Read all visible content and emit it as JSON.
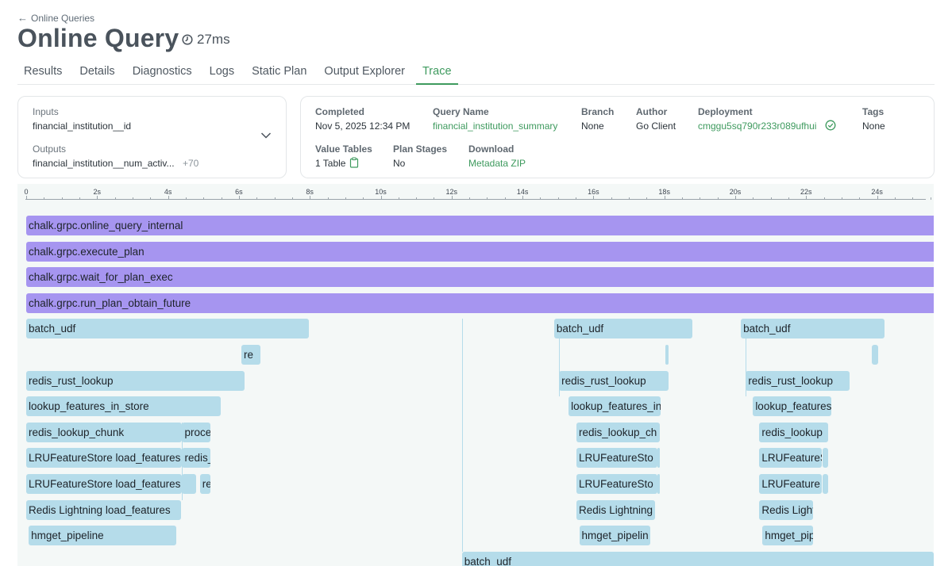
{
  "breadcrumb": "Online Queries",
  "header": {
    "title": "Online Query",
    "duration": "27ms"
  },
  "tabs": [
    "Results",
    "Details",
    "Diagnostics",
    "Logs",
    "Static Plan",
    "Output Explorer",
    "Trace"
  ],
  "active_tab": "Trace",
  "io_card": {
    "inputs_label": "Inputs",
    "inputs_value": "financial_institution__id",
    "outputs_label": "Outputs",
    "outputs_value": "financial_institution__num_activ...",
    "outputs_more": "+70"
  },
  "meta_card": {
    "completed_label": "Completed",
    "completed_value": "Nov 5, 2025 12:34 PM",
    "query_name_label": "Query Name",
    "query_name_value": "financial_institution_summary",
    "branch_label": "Branch",
    "branch_value": "None",
    "author_label": "Author",
    "author_value": "Go Client",
    "deployment_label": "Deployment",
    "deployment_value": "cmggu5sq790r233r089ufhui",
    "tags_label": "Tags",
    "tags_value": "None",
    "value_tables_label": "Value Tables",
    "value_tables_value": "1 Table",
    "plan_stages_label": "Plan Stages",
    "plan_stages_value": "No",
    "download_label": "Download",
    "download_value": "Metadata ZIP"
  },
  "timeline": {
    "ticks": [
      "0",
      "2s",
      "4s",
      "6s",
      "8s",
      "10s",
      "12s",
      "14s",
      "16s",
      "18s",
      "20s",
      "22s",
      "24s"
    ],
    "tick_values": [
      0,
      2,
      4,
      6,
      8,
      10,
      12,
      14,
      16,
      18,
      20,
      22,
      24
    ],
    "spans": [
      {
        "label": "chalk.grpc.online_query_internal",
        "row": 0,
        "start": 0.0,
        "end": 25.6,
        "kind": "root"
      },
      {
        "label": "chalk.grpc.execute_plan",
        "row": 1,
        "start": 0.0,
        "end": 25.6,
        "kind": "root"
      },
      {
        "label": "chalk.grpc.wait_for_plan_exec",
        "row": 2,
        "start": 0.0,
        "end": 25.6,
        "kind": "root"
      },
      {
        "label": "chalk.grpc.run_plan_obtain_future",
        "row": 3,
        "start": 0.0,
        "end": 25.6,
        "kind": "root"
      },
      {
        "label": "batch_udf",
        "row": 4,
        "start": 0.0,
        "end": 7.98,
        "kind": "child"
      },
      {
        "label": "re",
        "row": 5,
        "start": 6.07,
        "end": 6.6,
        "kind": "child"
      },
      {
        "label": "redis_rust_lookup",
        "row": 6,
        "start": 0.0,
        "end": 6.15,
        "kind": "child"
      },
      {
        "label": "lookup_features_in_store",
        "row": 7,
        "start": 0.0,
        "end": 5.48,
        "kind": "child"
      },
      {
        "label": "redis_lookup_chunk",
        "row": 8,
        "start": 0.0,
        "end": 4.4,
        "kind": "child"
      },
      {
        "label": "proce",
        "row": 8,
        "start": 4.4,
        "end": 5.2,
        "kind": "child"
      },
      {
        "label": "LRUFeatureStore load_features",
        "row": 9,
        "start": 0.0,
        "end": 4.4,
        "kind": "child"
      },
      {
        "label": "redis_",
        "row": 9,
        "start": 4.4,
        "end": 5.2,
        "kind": "child"
      },
      {
        "label": "LRUFeatureStore load_features",
        "row": 10,
        "start": 0.0,
        "end": 4.4,
        "kind": "child"
      },
      {
        "label": "",
        "row": 10,
        "start": 4.4,
        "end": 4.8,
        "kind": "child"
      },
      {
        "label": "re",
        "row": 10,
        "start": 4.9,
        "end": 5.2,
        "kind": "child"
      },
      {
        "label": "Redis Lightning load_features",
        "row": 11,
        "start": 0.0,
        "end": 4.37,
        "kind": "child"
      },
      {
        "label": "hmget_pipeline",
        "row": 12,
        "start": 0.07,
        "end": 4.24,
        "kind": "child"
      },
      {
        "label": "batch_udf",
        "row": 4,
        "start": 14.89,
        "end": 18.8,
        "kind": "child"
      },
      {
        "label": "",
        "row": 5,
        "start": 18.02,
        "end": 18.13,
        "kind": "child"
      },
      {
        "label": "redis_rust_lookup",
        "row": 6,
        "start": 15.03,
        "end": 18.11,
        "kind": "child"
      },
      {
        "label": "lookup_features_in",
        "row": 7,
        "start": 15.3,
        "end": 17.9,
        "kind": "child"
      },
      {
        "label": "redis_lookup_ch",
        "row": 8,
        "start": 15.52,
        "end": 17.87,
        "kind": "child"
      },
      {
        "label": "LRUFeatureSto",
        "row": 9,
        "start": 15.52,
        "end": 17.8,
        "kind": "child"
      },
      {
        "label": "",
        "row": 9,
        "start": 17.8,
        "end": 17.87,
        "kind": "child"
      },
      {
        "label": "LRUFeatureSto",
        "row": 10,
        "start": 15.52,
        "end": 17.8,
        "kind": "child"
      },
      {
        "label": "",
        "row": 10,
        "start": 17.8,
        "end": 17.87,
        "kind": "child"
      },
      {
        "label": "Redis Lightning",
        "row": 11,
        "start": 15.52,
        "end": 17.74,
        "kind": "child"
      },
      {
        "label": "hmget_pipelin",
        "row": 12,
        "start": 15.6,
        "end": 17.6,
        "kind": "child"
      },
      {
        "label": "batch_udf",
        "row": 4,
        "start": 20.16,
        "end": 24.22,
        "kind": "child"
      },
      {
        "label": "",
        "row": 5,
        "start": 23.86,
        "end": 24.04,
        "kind": "child"
      },
      {
        "label": "redis_rust_lookup",
        "row": 6,
        "start": 20.3,
        "end": 23.22,
        "kind": "child"
      },
      {
        "label": "lookup_features",
        "row": 7,
        "start": 20.5,
        "end": 22.7,
        "kind": "child"
      },
      {
        "label": "redis_lookup",
        "row": 8,
        "start": 20.68,
        "end": 22.63,
        "kind": "child"
      },
      {
        "label": "LRUFeatureS",
        "row": 9,
        "start": 20.68,
        "end": 22.45,
        "kind": "child"
      },
      {
        "label": "",
        "row": 9,
        "start": 22.47,
        "end": 22.63,
        "kind": "child"
      },
      {
        "label": "LRUFeature",
        "row": 10,
        "start": 20.68,
        "end": 22.45,
        "kind": "child"
      },
      {
        "label": "",
        "row": 10,
        "start": 22.47,
        "end": 22.63,
        "kind": "child"
      },
      {
        "label": "Redis Lightn",
        "row": 11,
        "start": 20.68,
        "end": 22.2,
        "kind": "child"
      },
      {
        "label": "hmget_pip",
        "row": 12,
        "start": 20.77,
        "end": 22.2,
        "kind": "child"
      },
      {
        "label": "batch_udf",
        "row": 13,
        "start": 12.29,
        "end": 25.6,
        "kind": "child"
      }
    ]
  },
  "colors": {
    "accent_green": "#3e9a5e",
    "root_span": "#a695f0",
    "child_span": "#b5dcea",
    "trace_bg": "#f4f8f7"
  }
}
